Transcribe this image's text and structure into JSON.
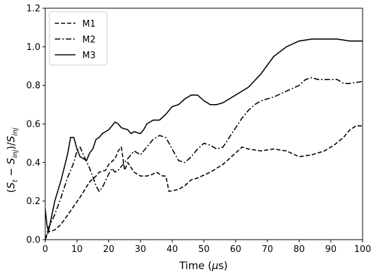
{
  "chart_data": {
    "type": "line",
    "xlabel": "Time (μs)",
    "ylabel": "(S_t − S_inj)/S_inj",
    "xlim": [
      0,
      100
    ],
    "ylim": [
      0.0,
      1.2
    ],
    "x_ticks": [
      0,
      10,
      20,
      30,
      40,
      50,
      60,
      70,
      80,
      90,
      100
    ],
    "y_ticks": [
      0.0,
      0.2,
      0.4,
      0.6,
      0.8,
      1.0,
      1.2
    ],
    "legend_position": "top-left",
    "grid": false,
    "series": [
      {
        "name": "M1",
        "style": "dashed",
        "x": [
          0,
          1,
          3,
          5,
          8,
          11,
          14,
          16,
          17,
          19,
          20,
          22,
          23,
          24,
          25,
          26,
          28,
          30,
          32,
          34,
          35,
          37,
          38,
          39,
          42,
          44,
          46,
          48,
          52,
          56,
          60,
          62,
          64,
          68,
          72,
          76,
          80,
          84,
          88,
          91,
          94,
          96,
          98,
          100
        ],
        "y": [
          0.0,
          0.04,
          0.05,
          0.08,
          0.15,
          0.22,
          0.3,
          0.33,
          0.35,
          0.36,
          0.39,
          0.42,
          0.46,
          0.48,
          0.36,
          0.4,
          0.35,
          0.33,
          0.33,
          0.34,
          0.35,
          0.33,
          0.33,
          0.25,
          0.26,
          0.28,
          0.31,
          0.32,
          0.35,
          0.39,
          0.45,
          0.48,
          0.47,
          0.46,
          0.47,
          0.46,
          0.43,
          0.44,
          0.46,
          0.49,
          0.53,
          0.57,
          0.59,
          0.59
        ]
      },
      {
        "name": "M2",
        "style": "dashdot",
        "x": [
          0,
          1,
          3,
          5,
          7,
          9,
          10,
          11,
          12,
          14,
          16,
          17,
          18,
          20,
          21,
          22,
          23,
          24,
          25,
          27,
          28,
          30,
          32,
          34,
          36,
          38,
          39,
          40,
          42,
          44,
          46,
          48,
          50,
          52,
          54,
          56,
          58,
          60,
          62,
          64,
          66,
          68,
          72,
          76,
          80,
          82,
          84,
          86,
          88,
          92,
          94,
          96,
          100
        ],
        "y": [
          0.0,
          0.06,
          0.13,
          0.22,
          0.32,
          0.4,
          0.46,
          0.48,
          0.44,
          0.37,
          0.28,
          0.25,
          0.27,
          0.34,
          0.37,
          0.35,
          0.36,
          0.38,
          0.4,
          0.44,
          0.46,
          0.44,
          0.48,
          0.52,
          0.54,
          0.53,
          0.5,
          0.47,
          0.41,
          0.4,
          0.43,
          0.47,
          0.5,
          0.49,
          0.47,
          0.48,
          0.53,
          0.58,
          0.63,
          0.67,
          0.7,
          0.72,
          0.74,
          0.77,
          0.8,
          0.83,
          0.84,
          0.83,
          0.83,
          0.83,
          0.81,
          0.81,
          0.82
        ]
      },
      {
        "name": "M3",
        "style": "solid",
        "x": [
          0,
          0.5,
          1,
          3,
          5,
          7,
          8,
          9,
          10,
          11,
          12,
          13,
          14,
          15,
          16,
          17,
          18,
          20,
          22,
          23,
          24,
          26,
          27,
          28,
          30,
          31,
          32,
          34,
          36,
          38,
          40,
          42,
          44,
          46,
          48,
          50,
          52,
          54,
          56,
          60,
          64,
          68,
          72,
          76,
          80,
          84,
          88,
          92,
          96,
          100
        ],
        "y": [
          0.16,
          0.08,
          0.04,
          0.2,
          0.31,
          0.44,
          0.53,
          0.53,
          0.47,
          0.43,
          0.42,
          0.41,
          0.45,
          0.47,
          0.52,
          0.53,
          0.55,
          0.57,
          0.61,
          0.6,
          0.58,
          0.57,
          0.55,
          0.56,
          0.55,
          0.57,
          0.6,
          0.62,
          0.62,
          0.65,
          0.69,
          0.7,
          0.73,
          0.75,
          0.75,
          0.72,
          0.7,
          0.7,
          0.71,
          0.75,
          0.79,
          0.86,
          0.95,
          1.0,
          1.03,
          1.04,
          1.04,
          1.04,
          1.03,
          1.03
        ]
      }
    ]
  }
}
